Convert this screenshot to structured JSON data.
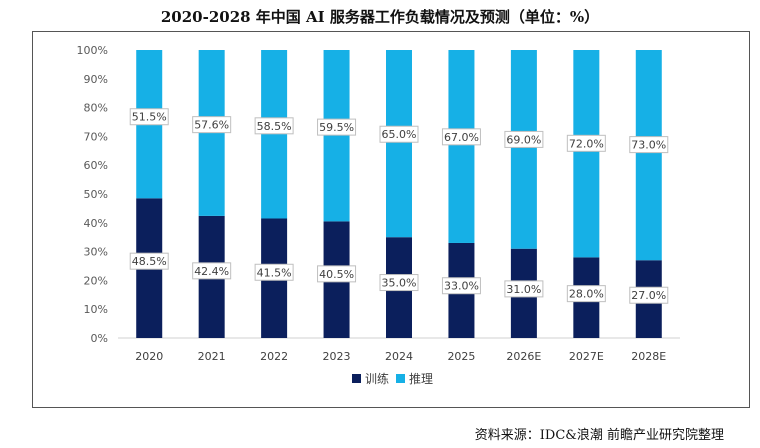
{
  "chart_data": {
    "type": "bar",
    "stacked": true,
    "title": "2020-2028 年中国 AI 服务器工作负载情况及预测（单位：%）",
    "categories": [
      "2020",
      "2021",
      "2022",
      "2023",
      "2024",
      "2025",
      "2026E",
      "2027E",
      "2028E"
    ],
    "series": [
      {
        "name": "训练",
        "color": "#0b1f5c",
        "values": [
          48.5,
          42.4,
          41.5,
          40.5,
          35.0,
          33.0,
          31.0,
          28.0,
          27.0
        ],
        "labels": [
          "48.5%",
          "42.4%",
          "41.5%",
          "40.5%",
          "35.0%",
          "33.0%",
          "31.0%",
          "28.0%",
          "27.0%"
        ]
      },
      {
        "name": "推理",
        "color": "#16b0e6",
        "values": [
          51.5,
          57.6,
          58.5,
          59.5,
          65.0,
          67.0,
          69.0,
          72.0,
          73.0
        ],
        "labels": [
          "51.5%",
          "57.6%",
          "58.5%",
          "59.5%",
          "65.0%",
          "67.0%",
          "69.0%",
          "72.0%",
          "73.0%"
        ]
      }
    ],
    "ylim": [
      0,
      100
    ],
    "yticks": [
      "0%",
      "10%",
      "20%",
      "30%",
      "40%",
      "50%",
      "60%",
      "70%",
      "80%",
      "90%",
      "100%"
    ],
    "grid": false,
    "legend": "bottom"
  },
  "source": "资料来源：IDC&浪潮 前瞻产业研究院整理"
}
